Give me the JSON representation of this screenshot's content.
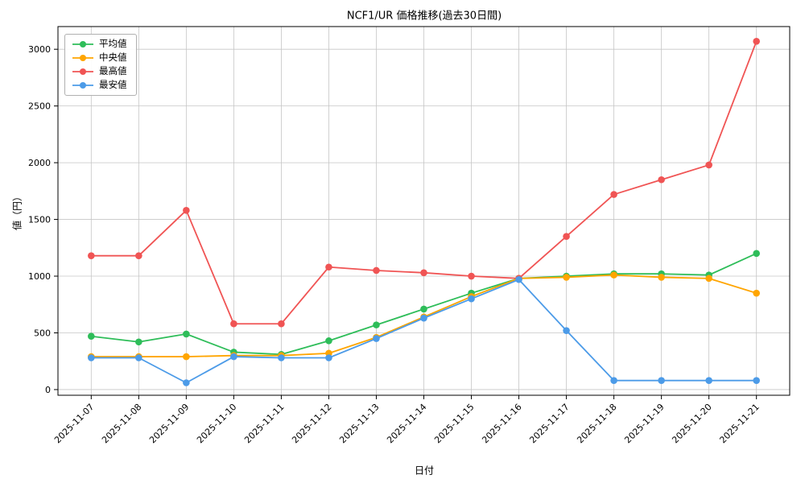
{
  "chart_data": {
    "type": "line",
    "title": "NCF1/UR 価格推移(過去30日間)",
    "xlabel": "日付",
    "ylabel": "値（円）",
    "grid": true,
    "legend_position": "upper-left",
    "ylim": [
      -50,
      3200
    ],
    "yticks": [
      0,
      500,
      1000,
      1500,
      2000,
      2500,
      3000
    ],
    "categories": [
      "2025-11-07",
      "2025-11-08",
      "2025-11-09",
      "2025-11-10",
      "2025-11-11",
      "2025-11-12",
      "2025-11-13",
      "2025-11-14",
      "2025-11-15",
      "2025-11-16",
      "2025-11-17",
      "2025-11-18",
      "2025-11-19",
      "2025-11-20",
      "2025-11-21"
    ],
    "series": [
      {
        "key": "mean",
        "name": "平均値",
        "color": "#2ebd59",
        "values": [
          470,
          420,
          490,
          330,
          310,
          430,
          570,
          710,
          850,
          980,
          1000,
          1020,
          1020,
          1010,
          1200
        ]
      },
      {
        "key": "median",
        "name": "中央値",
        "color": "#ffa500",
        "values": [
          290,
          290,
          290,
          300,
          300,
          320,
          460,
          640,
          820,
          980,
          990,
          1010,
          990,
          980,
          850
        ]
      },
      {
        "key": "max",
        "name": "最高値",
        "color": "#f05454",
        "values": [
          1180,
          1180,
          1580,
          580,
          580,
          1080,
          1050,
          1030,
          1000,
          980,
          1350,
          1720,
          1850,
          1980,
          3070
        ]
      },
      {
        "key": "min",
        "name": "最安値",
        "color": "#4c9be8",
        "values": [
          280,
          280,
          60,
          290,
          280,
          280,
          450,
          630,
          800,
          970,
          520,
          80,
          80,
          80,
          80
        ]
      }
    ]
  }
}
